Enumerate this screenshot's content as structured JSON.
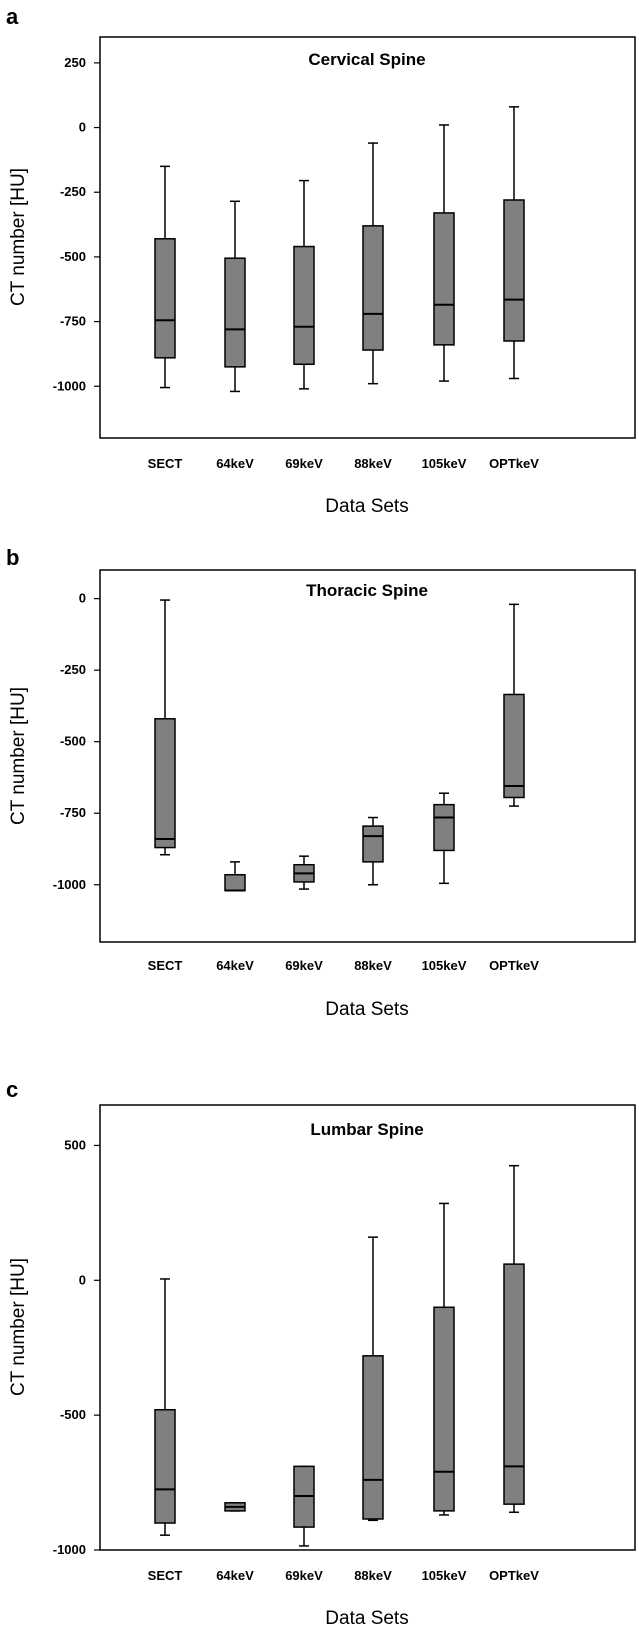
{
  "chart_data": [
    {
      "type": "box",
      "panel_label": "a",
      "title": "Cervical Spine",
      "xlabel": "Data Sets",
      "ylabel": "CT number [HU]",
      "categories": [
        "SECT",
        "64keV",
        "69keV",
        "88keV",
        "105keV",
        "OPTkeV"
      ],
      "yticks": [
        250,
        0,
        -250,
        -500,
        -750,
        -1000
      ],
      "ylim": [
        -1200,
        350
      ],
      "boxes": [
        {
          "min": -1005,
          "q1": -890,
          "median": -745,
          "q3": -430,
          "max": -150
        },
        {
          "min": -1020,
          "q1": -925,
          "median": -780,
          "q3": -505,
          "max": -285
        },
        {
          "min": -1010,
          "q1": -915,
          "median": -770,
          "q3": -460,
          "max": -205
        },
        {
          "min": -990,
          "q1": -860,
          "median": -720,
          "q3": -380,
          "max": -60
        },
        {
          "min": -980,
          "q1": -840,
          "median": -685,
          "q3": -330,
          "max": 10
        },
        {
          "min": -970,
          "q1": -825,
          "median": -665,
          "q3": -280,
          "max": 80
        }
      ]
    },
    {
      "type": "box",
      "panel_label": "b",
      "title": "Thoracic Spine",
      "xlabel": "Data Sets",
      "ylabel": "CT number [HU]",
      "categories": [
        "SECT",
        "64keV",
        "69keV",
        "88keV",
        "105keV",
        "OPTkeV"
      ],
      "yticks": [
        0,
        -250,
        -500,
        -750,
        -1000
      ],
      "ylim": [
        -1200,
        100
      ],
      "boxes": [
        {
          "min": -895,
          "q1": -870,
          "median": -840,
          "q3": -420,
          "max": -5
        },
        {
          "min": -1020,
          "q1": -1020,
          "median": -1020,
          "q3": -965,
          "max": -920
        },
        {
          "min": -1015,
          "q1": -990,
          "median": -960,
          "q3": -930,
          "max": -900
        },
        {
          "min": -1000,
          "q1": -920,
          "median": -830,
          "q3": -795,
          "max": -765
        },
        {
          "min": -995,
          "q1": -880,
          "median": -765,
          "q3": -720,
          "max": -680
        },
        {
          "min": -725,
          "q1": -695,
          "median": -655,
          "q3": -335,
          "max": -20
        }
      ]
    },
    {
      "type": "box",
      "panel_label": "c",
      "title": "Lumbar Spine",
      "xlabel": "Data Sets",
      "ylabel": "CT number [HU]",
      "categories": [
        "SECT",
        "64keV",
        "69keV",
        "88keV",
        "105keV",
        "OPTkeV"
      ],
      "yticks": [
        500,
        0,
        -500,
        -1000
      ],
      "ylim": [
        -1000,
        650
      ],
      "boxes": [
        {
          "min": -945,
          "q1": -900,
          "median": -775,
          "q3": -480,
          "max": 5
        },
        {
          "min": -855,
          "q1": -855,
          "median": -840,
          "q3": -825,
          "max": -825
        },
        {
          "min": -985,
          "q1": -915,
          "median": -800,
          "q3": -690,
          "max": -690
        },
        {
          "min": -890,
          "q1": -885,
          "median": -740,
          "q3": -280,
          "max": 160
        },
        {
          "min": -870,
          "q1": -855,
          "median": -710,
          "q3": -100,
          "max": 285
        },
        {
          "min": -860,
          "q1": -830,
          "median": -690,
          "q3": 60,
          "max": 425
        }
      ]
    }
  ]
}
